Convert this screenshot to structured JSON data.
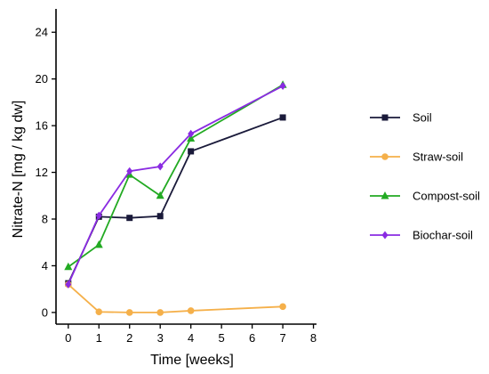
{
  "chart_data": {
    "type": "line",
    "title": "",
    "xlabel": "Time [weeks]",
    "ylabel": "Nitrate-N [mg / kg dw]",
    "xlim": [
      -0.4,
      8.1
    ],
    "ylim": [
      -1.0,
      26.0
    ],
    "xticks": [
      0,
      1,
      2,
      3,
      4,
      5,
      6,
      7,
      8
    ],
    "yticks": [
      0,
      4,
      8,
      12,
      16,
      20,
      24
    ],
    "grid": false,
    "legend_position": "right",
    "series": [
      {
        "name": "Soil",
        "color": "#1a1a3a",
        "marker": "square",
        "x": [
          0,
          1,
          2,
          3,
          4,
          7
        ],
        "values": [
          2.5,
          8.2,
          8.1,
          8.25,
          13.8,
          16.7
        ]
      },
      {
        "name": "Straw-soil",
        "color": "#f5b04a",
        "marker": "circle",
        "x": [
          0,
          1,
          2,
          3,
          4,
          7
        ],
        "values": [
          2.4,
          0.05,
          0.0,
          0.0,
          0.15,
          0.5
        ]
      },
      {
        "name": "Compost-soil",
        "color": "#22aa22",
        "marker": "triangle",
        "x": [
          0,
          1,
          2,
          3,
          4,
          7
        ],
        "values": [
          3.9,
          5.8,
          11.8,
          10.0,
          14.9,
          19.5
        ]
      },
      {
        "name": "Biochar-soil",
        "color": "#8a2be2",
        "marker": "diamond",
        "x": [
          0,
          1,
          2,
          3,
          4,
          7
        ],
        "values": [
          2.4,
          8.3,
          12.1,
          12.5,
          15.3,
          19.4
        ]
      }
    ]
  }
}
